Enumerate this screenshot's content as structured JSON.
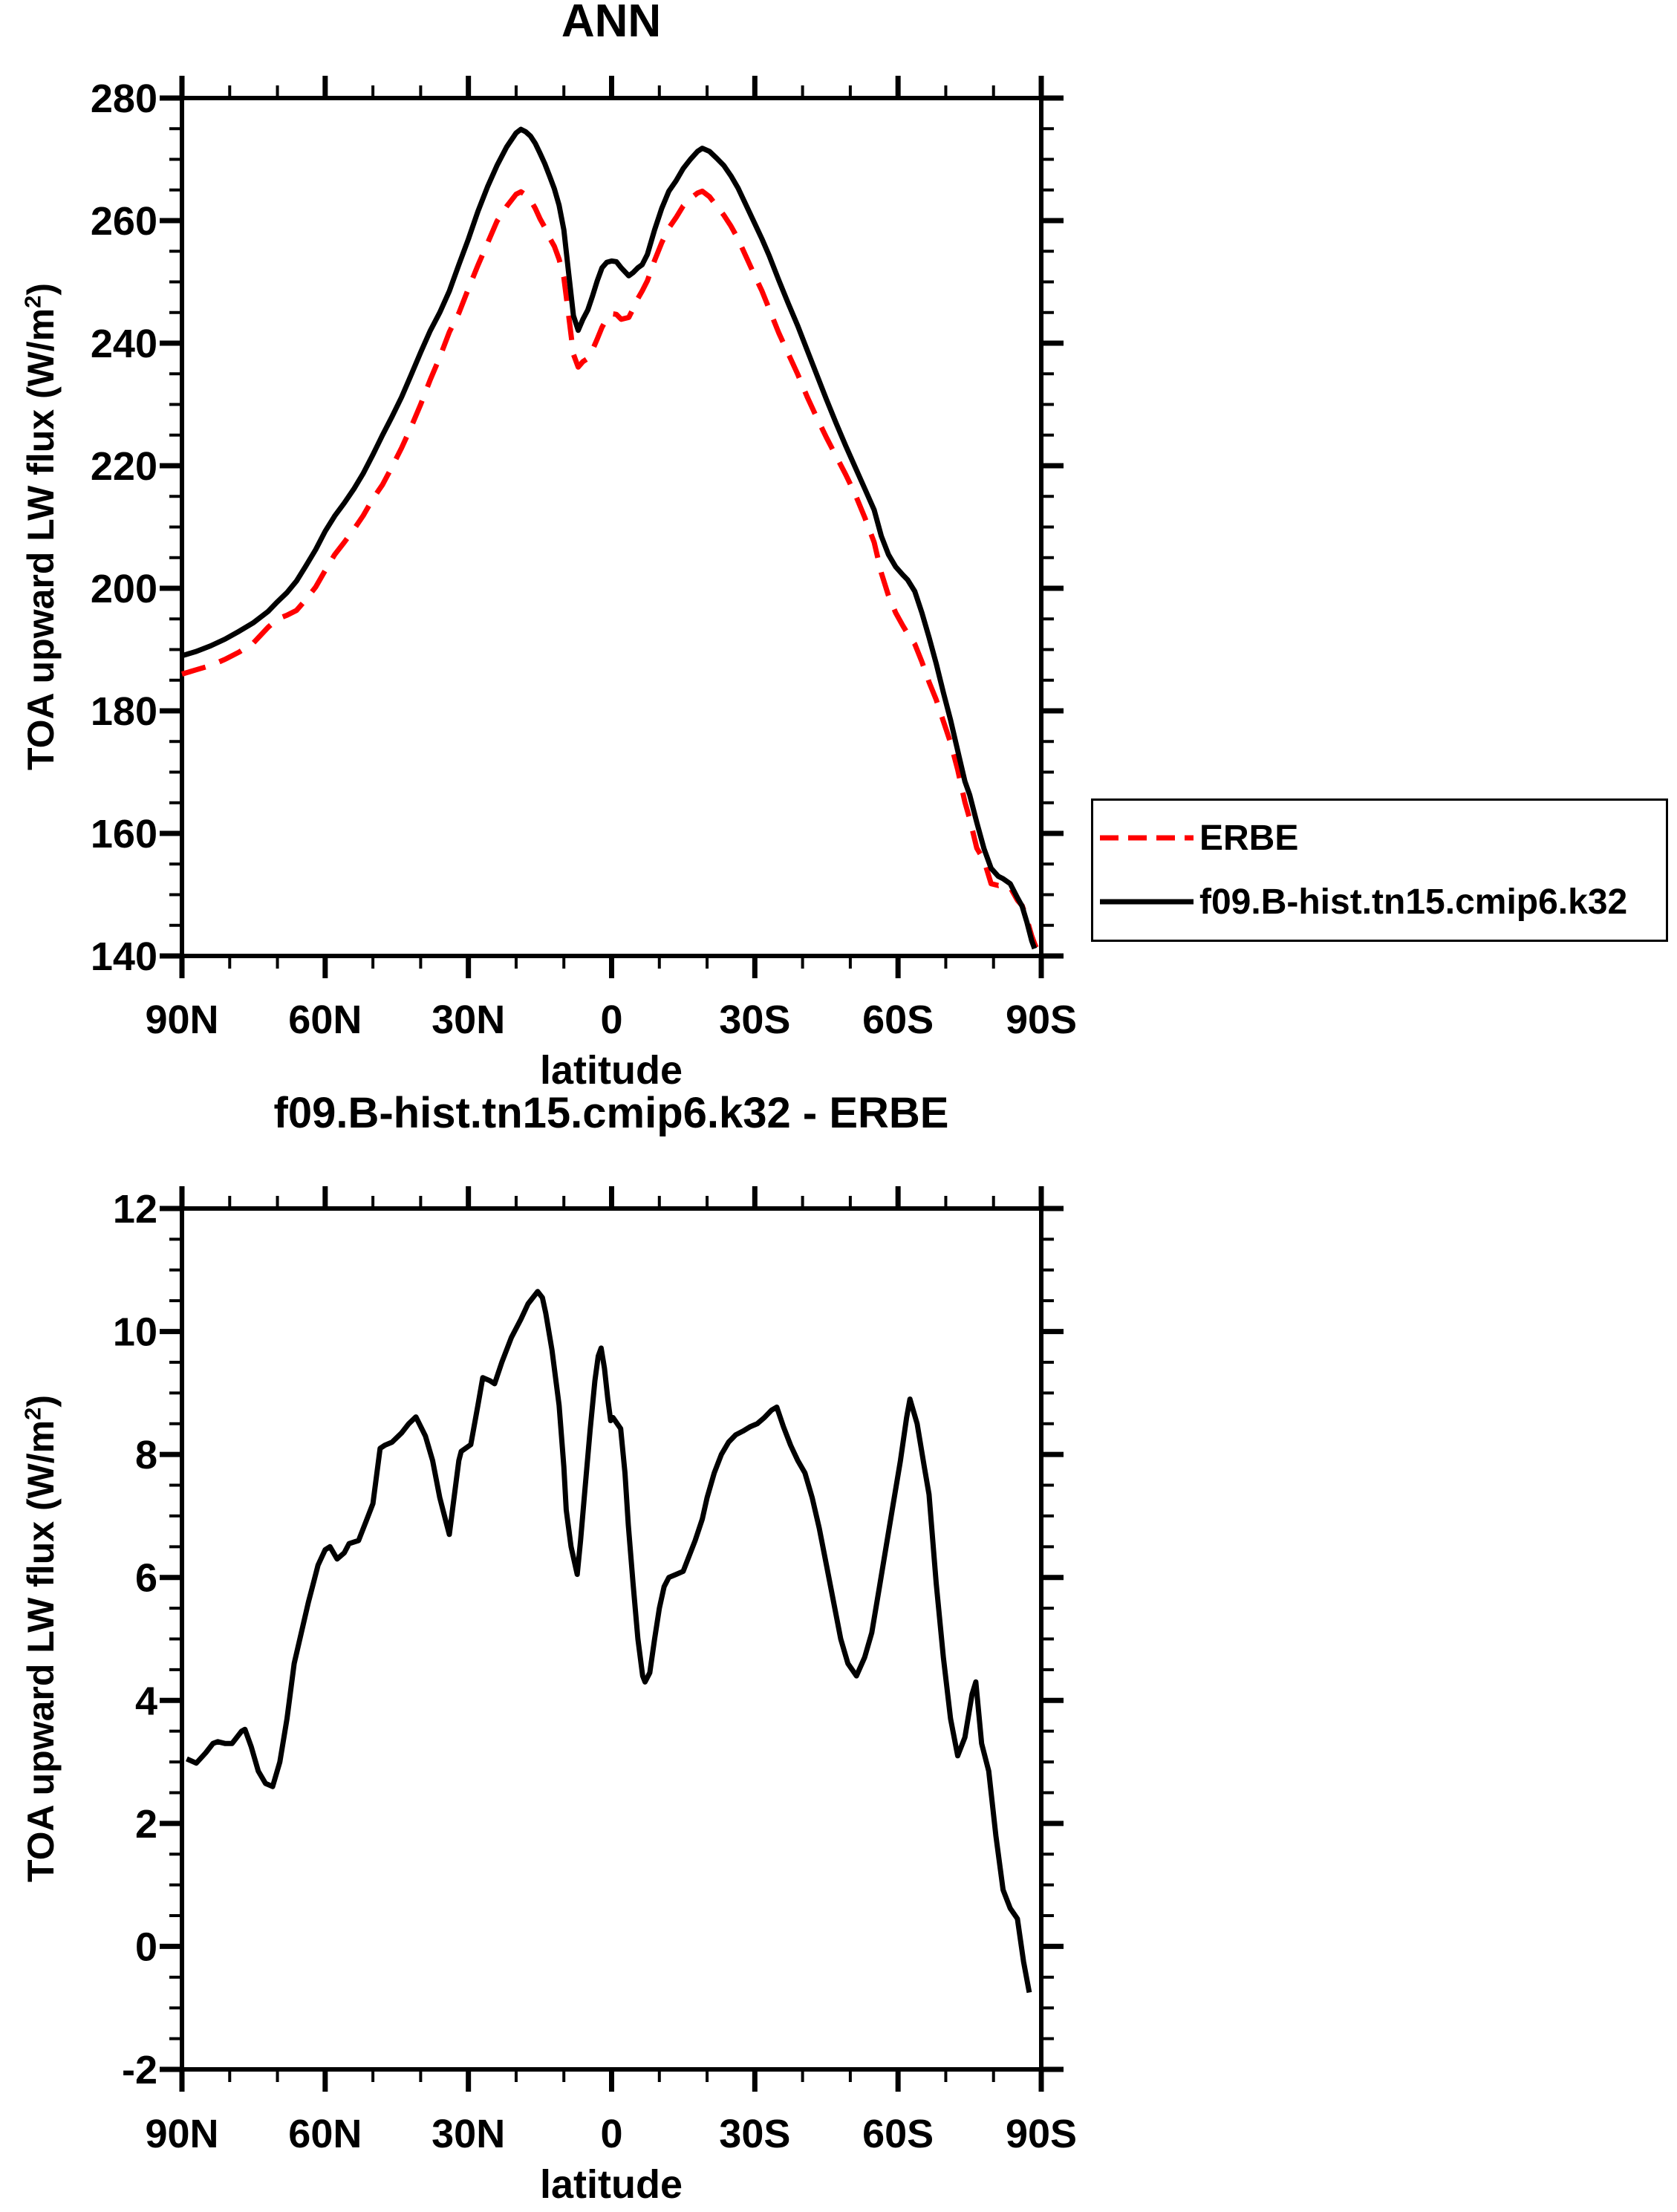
{
  "figure": {
    "background": "#ffffff",
    "accent_red": "#ff0000",
    "line_black": "#000000"
  },
  "legend": {
    "entries": [
      {
        "label": "ERBE",
        "color": "#ff0000",
        "style": "dashed"
      },
      {
        "label": "f09.B-hist.tn15.cmip6.k32",
        "color": "#000000",
        "style": "solid"
      }
    ]
  },
  "chart_data": [
    {
      "type": "line",
      "title": "ANN",
      "xlabel": "latitude",
      "ylabel": "TOA upward LW flux (W/m2)",
      "ylabel_parts": {
        "pre": "TOA upward LW flux (W/m",
        "sup": "2",
        "post": ")"
      },
      "ylim": [
        140,
        280
      ],
      "ytick_major": [
        140,
        160,
        180,
        200,
        220,
        240,
        260,
        280
      ],
      "ytick_minor_step": 5,
      "xlim": [
        90,
        -90
      ],
      "xticks": [
        {
          "lat": 90,
          "label": "90N"
        },
        {
          "lat": 60,
          "label": "60N"
        },
        {
          "lat": 30,
          "label": "30N"
        },
        {
          "lat": 0,
          "label": "0"
        },
        {
          "lat": -30,
          "label": "30S"
        },
        {
          "lat": -60,
          "label": "60S"
        },
        {
          "lat": -90,
          "label": "90S"
        }
      ],
      "xtick_minor_step": 10,
      "grid": false,
      "legend_position": "right-outside",
      "series": [
        {
          "name": "ERBE",
          "color": "#ff0000",
          "style": "dashed",
          "x": [
            90,
            87,
            84,
            81,
            78,
            75,
            72,
            70,
            68,
            66,
            64,
            62,
            60,
            58,
            56,
            54,
            52,
            50,
            48,
            46,
            44,
            42,
            40,
            38,
            36,
            34,
            32,
            30,
            28,
            26,
            24,
            22,
            20,
            19,
            18,
            17,
            16,
            15,
            14,
            13,
            12,
            11,
            10,
            9,
            8,
            7,
            6,
            5,
            4,
            3,
            2,
            1,
            0,
            -1,
            -2,
            -3.6,
            -4.5,
            -5.5,
            -6.4,
            -7.5,
            -9,
            -10.5,
            -12,
            -13.5,
            -15,
            -16.5,
            -18,
            -19,
            -20.5,
            -22,
            -23.5,
            -25,
            -26.5,
            -28,
            -30,
            -31.5,
            -33,
            -35,
            -37,
            -39,
            -41,
            -43,
            -45,
            -47,
            -49,
            -51,
            -53,
            -55,
            -56.5,
            -58,
            -59.5,
            -61,
            -62,
            -63.5,
            -65,
            -66.5,
            -68,
            -69.5,
            -71,
            -72.5,
            -74,
            -75,
            -76.5,
            -78,
            -79.5,
            -81,
            -82,
            -83.5,
            -85,
            -86,
            -87,
            -88,
            -88.6,
            -89.3
          ],
          "values": [
            186,
            186.7,
            187.4,
            188.4,
            189.6,
            191.1,
            193.6,
            195,
            195.6,
            196.4,
            198.2,
            200.2,
            202.9,
            205.5,
            207.5,
            209.6,
            211.9,
            214.6,
            216.9,
            219.8,
            222.9,
            226.3,
            230,
            234,
            237.7,
            241.8,
            244.9,
            248.9,
            252.7,
            256.3,
            259.9,
            262.3,
            264.3,
            264.7,
            264.2,
            263.4,
            262,
            260.3,
            258.9,
            257.2,
            255.8,
            253.7,
            250.7,
            244.6,
            238.2,
            236.1,
            237,
            237.5,
            238.9,
            240.7,
            242.6,
            244,
            244.8,
            244.7,
            243.9,
            244.2,
            245.6,
            247.3,
            248.5,
            250.2,
            253.5,
            256.4,
            258.8,
            260.5,
            262.4,
            263.6,
            264.5,
            264.8,
            263.9,
            262.4,
            260.9,
            259.1,
            257,
            254.4,
            251,
            248.5,
            245.6,
            241.7,
            238.3,
            234.9,
            231.2,
            227.8,
            224.6,
            221.6,
            218.6,
            215.4,
            211.6,
            207.5,
            202.5,
            198.8,
            196,
            193.9,
            192.6,
            190.9,
            188,
            184.7,
            181.8,
            178.3,
            174.8,
            170.4,
            165.1,
            162.4,
            157.6,
            155.6,
            151.8,
            151.5,
            151.7,
            151.2,
            149.1,
            148.2,
            146,
            143.3,
            142,
            140.7
          ]
        },
        {
          "name": "f09.B-hist.tn15.cmip6.k32",
          "color": "#000000",
          "style": "solid",
          "x": [
            90,
            87,
            84,
            81,
            78,
            75,
            72,
            70,
            68,
            66,
            64,
            62,
            60,
            58,
            56,
            54,
            52,
            50,
            48,
            46,
            44,
            42,
            40,
            38,
            36,
            34,
            32,
            30,
            28,
            26,
            24,
            22,
            20,
            19,
            18,
            17,
            16,
            15,
            14,
            13,
            12,
            11,
            10,
            9,
            8,
            7,
            6,
            5,
            4,
            3,
            2,
            1,
            0,
            -1,
            -2,
            -3.6,
            -4.5,
            -5.5,
            -6.4,
            -7.5,
            -9,
            -10.5,
            -12,
            -13.5,
            -15,
            -16.5,
            -18,
            -19,
            -20.5,
            -22,
            -23.5,
            -25,
            -26.5,
            -28,
            -30,
            -31.5,
            -33,
            -35,
            -37,
            -39,
            -41,
            -43,
            -45,
            -47,
            -49,
            -51,
            -53,
            -55,
            -56.5,
            -58,
            -59.5,
            -61,
            -62,
            -63.5,
            -65,
            -66.5,
            -68,
            -69.5,
            -71,
            -72.5,
            -74,
            -75,
            -76.5,
            -78,
            -79.5,
            -81,
            -82,
            -83.5,
            -85,
            -86,
            -87,
            -88,
            -88.6
          ],
          "values": [
            189,
            189.7,
            190.6,
            191.7,
            193,
            194.4,
            196.2,
            197.8,
            199.3,
            201.2,
            203.7,
            206.3,
            209.3,
            211.8,
            213.9,
            216.2,
            218.8,
            221.8,
            225,
            228,
            231.2,
            234.8,
            238.5,
            242,
            245,
            248.5,
            252.8,
            257,
            261.5,
            265.5,
            269,
            272,
            274.3,
            274.9,
            274.5,
            273.8,
            272.6,
            271,
            269.3,
            267.3,
            265.2,
            262.5,
            258.5,
            251.5,
            244.5,
            242.1,
            243.9,
            245.4,
            247.7,
            250.2,
            252.3,
            253.2,
            253.4,
            253.3,
            252.3,
            251,
            251.5,
            252.3,
            252.8,
            254.5,
            258.5,
            262,
            264.8,
            266.5,
            268.5,
            270,
            271.3,
            271.8,
            271.3,
            270.2,
            269,
            267.3,
            265.3,
            262.8,
            259.5,
            257,
            254.3,
            250.3,
            246.5,
            242.8,
            238.8,
            234.8,
            230.8,
            227,
            223.3,
            219.8,
            216.3,
            212.8,
            208.5,
            205.5,
            203.5,
            202.2,
            201.4,
            199.5,
            196,
            192,
            187.7,
            183,
            178.5,
            173.5,
            168.5,
            166.3,
            161.8,
            157.5,
            154.3,
            153,
            152.6,
            151.8,
            149.5,
            148.1,
            145.5,
            142.5,
            141.2
          ]
        }
      ]
    },
    {
      "type": "line",
      "title": "f09.B-hist.tn15.cmip6.k32 - ERBE",
      "xlabel": "latitude",
      "ylabel": "TOA upward LW flux (W/m2)",
      "ylabel_parts": {
        "pre": "TOA upward LW flux (W/m",
        "sup": "2",
        "post": ")"
      },
      "ylim": [
        -2,
        12
      ],
      "ytick_major": [
        -2,
        0,
        2,
        4,
        6,
        8,
        10,
        12
      ],
      "ytick_minor_step": 0.5,
      "xlim": [
        90,
        -90
      ],
      "xticks": [
        {
          "lat": 90,
          "label": "90N"
        },
        {
          "lat": 60,
          "label": "60N"
        },
        {
          "lat": 30,
          "label": "30N"
        },
        {
          "lat": 0,
          "label": "0"
        },
        {
          "lat": -30,
          "label": "30S"
        },
        {
          "lat": -60,
          "label": "60S"
        },
        {
          "lat": -90,
          "label": "90S"
        }
      ],
      "xtick_minor_step": 10,
      "grid": false,
      "legend_position": "none",
      "series": [
        {
          "name": "f09.B-hist.tn15.cmip6.k32 - ERBE",
          "color": "#000000",
          "style": "solid",
          "x": [
            89,
            87,
            85,
            83.5,
            82.5,
            81,
            79.5,
            77.5,
            76.8,
            75.5,
            74,
            72.5,
            71,
            69.5,
            68,
            66.5,
            65,
            63.5,
            62.5,
            61.5,
            60,
            59,
            57.5,
            56,
            55,
            53,
            51.5,
            50,
            48.5,
            47.5,
            46,
            44,
            42.5,
            41,
            39,
            37.5,
            36,
            34.5,
            34,
            33,
            32,
            31.5,
            29.5,
            28,
            27,
            25.5,
            24.5,
            23,
            21,
            19,
            17.5,
            15.5,
            14.5,
            13.8,
            12.5,
            11,
            10,
            9.5,
            8.5,
            7.2,
            6.5,
            5.5,
            4.5,
            3.5,
            2.8,
            2.2,
            1.5,
            0.8,
            0.2,
            -0.3,
            -1.9,
            -2.8,
            -3.5,
            -4.5,
            -5.5,
            -6.5,
            -7,
            -8,
            -9,
            -10,
            -11,
            -12,
            -13.5,
            -15,
            -16,
            -17.5,
            -19,
            -20,
            -21.5,
            -23,
            -24.5,
            -26,
            -27.5,
            -29,
            -30.5,
            -32,
            -33.5,
            -34.6,
            -36,
            -37.5,
            -39,
            -40.5,
            -42,
            -43.5,
            -45,
            -46.5,
            -48,
            -49.5,
            -51.3,
            -53,
            -54.5,
            -56,
            -57.5,
            -59,
            -60.5,
            -61.8,
            -62.5,
            -64,
            -65.5,
            -66.5,
            -68,
            -69.5,
            -71,
            -72.5,
            -74,
            -75.5,
            -76.3,
            -77.5,
            -79,
            -80.5,
            -82,
            -83.5,
            -85,
            -86.3,
            -87.5
          ],
          "values": [
            3.05,
            2.98,
            3.15,
            3.3,
            3.33,
            3.3,
            3.3,
            3.5,
            3.53,
            3.25,
            2.85,
            2.65,
            2.6,
            3,
            3.7,
            4.6,
            5.1,
            5.6,
            5.9,
            6.2,
            6.45,
            6.5,
            6.3,
            6.4,
            6.55,
            6.6,
            6.9,
            7.2,
            8.1,
            8.15,
            8.2,
            8.35,
            8.5,
            8.61,
            8.3,
            7.9,
            7.3,
            6.85,
            6.7,
            7.3,
            7.9,
            8.05,
            8.16,
            8.8,
            9.25,
            9.2,
            9.15,
            9.5,
            9.9,
            10.2,
            10.45,
            10.65,
            10.55,
            10.3,
            9.7,
            8.8,
            7.8,
            7.1,
            6.5,
            6.05,
            6.6,
            7.5,
            8.4,
            9.2,
            9.6,
            9.73,
            9.4,
            8.9,
            8.55,
            8.6,
            8.42,
            7.7,
            6.85,
            5.9,
            5,
            4.4,
            4.3,
            4.45,
            5,
            5.5,
            5.85,
            6,
            6.05,
            6.1,
            6.3,
            6.6,
            6.95,
            7.3,
            7.7,
            8,
            8.2,
            8.32,
            8.38,
            8.45,
            8.5,
            8.6,
            8.72,
            8.77,
            8.45,
            8.15,
            7.9,
            7.7,
            7.3,
            6.8,
            6.2,
            5.6,
            5,
            4.6,
            4.4,
            4.7,
            5.1,
            5.8,
            6.5,
            7.2,
            7.9,
            8.6,
            8.9,
            8.5,
            7.8,
            7.35,
            5.9,
            4.7,
            3.7,
            3.1,
            3.4,
            4.1,
            4.3,
            3.3,
            2.85,
            1.8,
            0.92,
            0.62,
            0.45,
            -0.25,
            -0.75
          ]
        }
      ]
    }
  ]
}
